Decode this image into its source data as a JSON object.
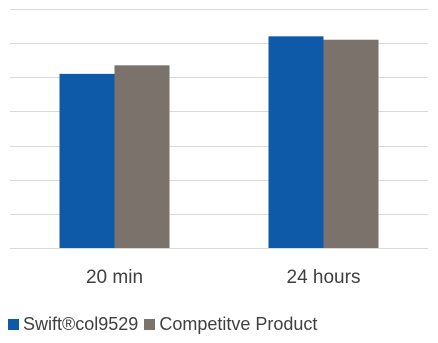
{
  "chart_data": {
    "type": "bar",
    "title": "",
    "xlabel": "",
    "ylabel": "",
    "categories": [
      "20 min",
      "24 hours"
    ],
    "series": [
      {
        "name": "Swift®col9529",
        "color": "#0f5aa8",
        "values": [
          5.1,
          6.2
        ]
      },
      {
        "name": "Competitve Product",
        "color": "#7a726b",
        "values": [
          5.35,
          6.1
        ]
      }
    ],
    "ylim": [
      0,
      7
    ],
    "ytick_step": 1,
    "y_tick_labels_visible": false,
    "grid": true,
    "gridline_color": "#d9d9d9",
    "legend_position": "bottom"
  }
}
